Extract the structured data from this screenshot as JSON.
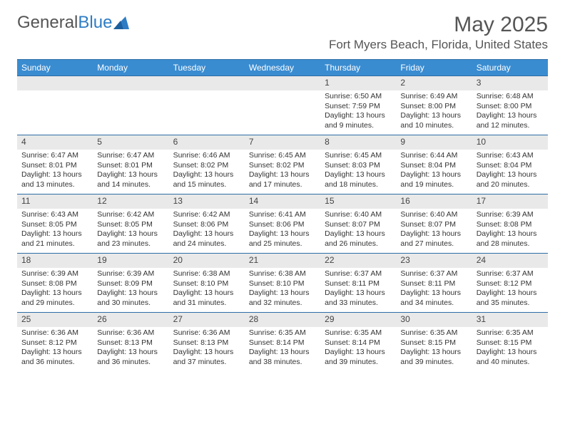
{
  "logo": {
    "text1": "General",
    "text2": "Blue"
  },
  "title": "May 2025",
  "location": "Fort Myers Beach, Florida, United States",
  "header_bg": "#3a8cd1",
  "border_color": "#2e6da4",
  "daynum_bg": "#e9e9e9",
  "daynames": [
    "Sunday",
    "Monday",
    "Tuesday",
    "Wednesday",
    "Thursday",
    "Friday",
    "Saturday"
  ],
  "weeks": [
    [
      {
        "n": "",
        "r": "",
        "s": "",
        "d": ""
      },
      {
        "n": "",
        "r": "",
        "s": "",
        "d": ""
      },
      {
        "n": "",
        "r": "",
        "s": "",
        "d": ""
      },
      {
        "n": "",
        "r": "",
        "s": "",
        "d": ""
      },
      {
        "n": "1",
        "r": "Sunrise: 6:50 AM",
        "s": "Sunset: 7:59 PM",
        "d": "Daylight: 13 hours and 9 minutes."
      },
      {
        "n": "2",
        "r": "Sunrise: 6:49 AM",
        "s": "Sunset: 8:00 PM",
        "d": "Daylight: 13 hours and 10 minutes."
      },
      {
        "n": "3",
        "r": "Sunrise: 6:48 AM",
        "s": "Sunset: 8:00 PM",
        "d": "Daylight: 13 hours and 12 minutes."
      }
    ],
    [
      {
        "n": "4",
        "r": "Sunrise: 6:47 AM",
        "s": "Sunset: 8:01 PM",
        "d": "Daylight: 13 hours and 13 minutes."
      },
      {
        "n": "5",
        "r": "Sunrise: 6:47 AM",
        "s": "Sunset: 8:01 PM",
        "d": "Daylight: 13 hours and 14 minutes."
      },
      {
        "n": "6",
        "r": "Sunrise: 6:46 AM",
        "s": "Sunset: 8:02 PM",
        "d": "Daylight: 13 hours and 15 minutes."
      },
      {
        "n": "7",
        "r": "Sunrise: 6:45 AM",
        "s": "Sunset: 8:02 PM",
        "d": "Daylight: 13 hours and 17 minutes."
      },
      {
        "n": "8",
        "r": "Sunrise: 6:45 AM",
        "s": "Sunset: 8:03 PM",
        "d": "Daylight: 13 hours and 18 minutes."
      },
      {
        "n": "9",
        "r": "Sunrise: 6:44 AM",
        "s": "Sunset: 8:04 PM",
        "d": "Daylight: 13 hours and 19 minutes."
      },
      {
        "n": "10",
        "r": "Sunrise: 6:43 AM",
        "s": "Sunset: 8:04 PM",
        "d": "Daylight: 13 hours and 20 minutes."
      }
    ],
    [
      {
        "n": "11",
        "r": "Sunrise: 6:43 AM",
        "s": "Sunset: 8:05 PM",
        "d": "Daylight: 13 hours and 21 minutes."
      },
      {
        "n": "12",
        "r": "Sunrise: 6:42 AM",
        "s": "Sunset: 8:05 PM",
        "d": "Daylight: 13 hours and 23 minutes."
      },
      {
        "n": "13",
        "r": "Sunrise: 6:42 AM",
        "s": "Sunset: 8:06 PM",
        "d": "Daylight: 13 hours and 24 minutes."
      },
      {
        "n": "14",
        "r": "Sunrise: 6:41 AM",
        "s": "Sunset: 8:06 PM",
        "d": "Daylight: 13 hours and 25 minutes."
      },
      {
        "n": "15",
        "r": "Sunrise: 6:40 AM",
        "s": "Sunset: 8:07 PM",
        "d": "Daylight: 13 hours and 26 minutes."
      },
      {
        "n": "16",
        "r": "Sunrise: 6:40 AM",
        "s": "Sunset: 8:07 PM",
        "d": "Daylight: 13 hours and 27 minutes."
      },
      {
        "n": "17",
        "r": "Sunrise: 6:39 AM",
        "s": "Sunset: 8:08 PM",
        "d": "Daylight: 13 hours and 28 minutes."
      }
    ],
    [
      {
        "n": "18",
        "r": "Sunrise: 6:39 AM",
        "s": "Sunset: 8:08 PM",
        "d": "Daylight: 13 hours and 29 minutes."
      },
      {
        "n": "19",
        "r": "Sunrise: 6:39 AM",
        "s": "Sunset: 8:09 PM",
        "d": "Daylight: 13 hours and 30 minutes."
      },
      {
        "n": "20",
        "r": "Sunrise: 6:38 AM",
        "s": "Sunset: 8:10 PM",
        "d": "Daylight: 13 hours and 31 minutes."
      },
      {
        "n": "21",
        "r": "Sunrise: 6:38 AM",
        "s": "Sunset: 8:10 PM",
        "d": "Daylight: 13 hours and 32 minutes."
      },
      {
        "n": "22",
        "r": "Sunrise: 6:37 AM",
        "s": "Sunset: 8:11 PM",
        "d": "Daylight: 13 hours and 33 minutes."
      },
      {
        "n": "23",
        "r": "Sunrise: 6:37 AM",
        "s": "Sunset: 8:11 PM",
        "d": "Daylight: 13 hours and 34 minutes."
      },
      {
        "n": "24",
        "r": "Sunrise: 6:37 AM",
        "s": "Sunset: 8:12 PM",
        "d": "Daylight: 13 hours and 35 minutes."
      }
    ],
    [
      {
        "n": "25",
        "r": "Sunrise: 6:36 AM",
        "s": "Sunset: 8:12 PM",
        "d": "Daylight: 13 hours and 36 minutes."
      },
      {
        "n": "26",
        "r": "Sunrise: 6:36 AM",
        "s": "Sunset: 8:13 PM",
        "d": "Daylight: 13 hours and 36 minutes."
      },
      {
        "n": "27",
        "r": "Sunrise: 6:36 AM",
        "s": "Sunset: 8:13 PM",
        "d": "Daylight: 13 hours and 37 minutes."
      },
      {
        "n": "28",
        "r": "Sunrise: 6:35 AM",
        "s": "Sunset: 8:14 PM",
        "d": "Daylight: 13 hours and 38 minutes."
      },
      {
        "n": "29",
        "r": "Sunrise: 6:35 AM",
        "s": "Sunset: 8:14 PM",
        "d": "Daylight: 13 hours and 39 minutes."
      },
      {
        "n": "30",
        "r": "Sunrise: 6:35 AM",
        "s": "Sunset: 8:15 PM",
        "d": "Daylight: 13 hours and 39 minutes."
      },
      {
        "n": "31",
        "r": "Sunrise: 6:35 AM",
        "s": "Sunset: 8:15 PM",
        "d": "Daylight: 13 hours and 40 minutes."
      }
    ]
  ]
}
